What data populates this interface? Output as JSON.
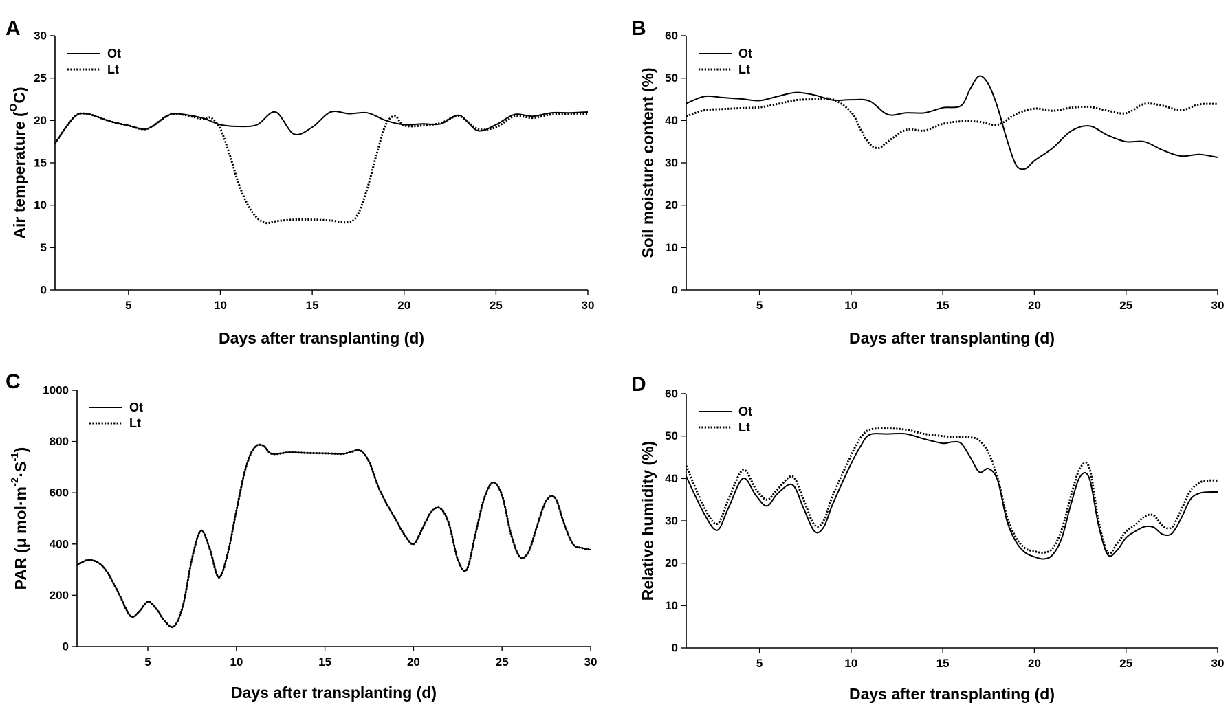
{
  "chart_data": [
    {
      "type": "line",
      "panel": "A",
      "title": "",
      "xlabel": "Days after transplanting (d)",
      "ylabel_main": "Air temperature (",
      "ylabel_sup": "O",
      "ylabel_end": "C)",
      "xlim": [
        1,
        30
      ],
      "ylim": [
        0,
        30
      ],
      "xticks": [
        "5",
        "10",
        "15",
        "20",
        "25",
        "30"
      ],
      "yticks": [
        "0",
        "5",
        "10",
        "15",
        "20",
        "25",
        "30"
      ],
      "legend": [
        "Ot",
        "Lt"
      ],
      "series": [
        {
          "name": "Ot",
          "style": "solid",
          "x": [
            1,
            2,
            2.7,
            4,
            5,
            6,
            7,
            7.6,
            9,
            10,
            11,
            12,
            13,
            14,
            15,
            16,
            17,
            18,
            19,
            20,
            21,
            22,
            23,
            24,
            25,
            26,
            27,
            28,
            29,
            30
          ],
          "y": [
            17.3,
            20.3,
            20.8,
            19.9,
            19.4,
            19.0,
            20.4,
            20.8,
            20.3,
            19.5,
            19.3,
            19.5,
            21.0,
            18.4,
            19.2,
            21.0,
            20.8,
            20.9,
            20.0,
            19.5,
            19.6,
            19.6,
            20.6,
            18.8,
            19.5,
            20.7,
            20.5,
            20.9,
            20.9,
            21.0
          ]
        },
        {
          "name": "Lt",
          "style": "dotted",
          "x": [
            1,
            2,
            2.7,
            4,
            5,
            6,
            7,
            7.6,
            9,
            9.5,
            10,
            10.5,
            11,
            11.5,
            12,
            12.5,
            13,
            14,
            15,
            16,
            17,
            17.5,
            18,
            18.5,
            19,
            19.5,
            20,
            21,
            22,
            23,
            24,
            25,
            26,
            27,
            28,
            29,
            30
          ],
          "y": [
            17.3,
            20.3,
            20.8,
            19.9,
            19.4,
            19.0,
            20.4,
            20.8,
            20.2,
            20.3,
            19.0,
            16.0,
            12.5,
            10.0,
            8.5,
            7.9,
            8.1,
            8.3,
            8.3,
            8.2,
            8.0,
            9.0,
            12.0,
            16.0,
            19.5,
            20.5,
            19.4,
            19.4,
            19.7,
            20.5,
            19.0,
            19.2,
            20.5,
            20.3,
            20.7,
            20.8,
            20.8
          ]
        }
      ]
    },
    {
      "type": "line",
      "panel": "B",
      "title": "",
      "xlabel": "Days after transplanting (d)",
      "ylabel_main": "Soil moisture content (%)",
      "ylabel_sup": "",
      "ylabel_end": "",
      "xlim": [
        1,
        30
      ],
      "ylim": [
        0,
        60
      ],
      "xticks": [
        "5",
        "10",
        "15",
        "20",
        "25",
        "30"
      ],
      "yticks": [
        "0",
        "10",
        "20",
        "30",
        "40",
        "50",
        "60"
      ],
      "legend": [
        "Ot",
        "Lt"
      ],
      "series": [
        {
          "name": "Ot",
          "style": "solid",
          "x": [
            1,
            2,
            3,
            4,
            5,
            6,
            7,
            8,
            9,
            10,
            11,
            12,
            13,
            14,
            15,
            16,
            16.5,
            17,
            17.5,
            18,
            18.5,
            19,
            19.5,
            20,
            21,
            22,
            23,
            24,
            25,
            26,
            27,
            28,
            29,
            30
          ],
          "y": [
            44.0,
            45.7,
            45.4,
            45.1,
            44.7,
            45.7,
            46.6,
            46.0,
            44.8,
            44.9,
            44.6,
            41.4,
            41.8,
            41.8,
            43.0,
            43.5,
            47.5,
            50.5,
            48.5,
            43.0,
            35.5,
            29.5,
            28.6,
            30.5,
            33.5,
            37.5,
            38.7,
            36.5,
            35.0,
            35.0,
            33.0,
            31.6,
            32.0,
            31.3
          ]
        },
        {
          "name": "Lt",
          "style": "dotted",
          "x": [
            1,
            2,
            3,
            4,
            5,
            6,
            7,
            8,
            9,
            10,
            10.5,
            11,
            11.5,
            12,
            13,
            14,
            15,
            16,
            17,
            18,
            19,
            20,
            21,
            22,
            23,
            24,
            25,
            26,
            27,
            28,
            29,
            30
          ],
          "y": [
            41.0,
            42.4,
            42.7,
            42.9,
            43.1,
            43.9,
            44.8,
            45.0,
            45.0,
            42.0,
            38.0,
            34.5,
            33.5,
            35.0,
            37.8,
            37.6,
            39.2,
            39.8,
            39.7,
            39.0,
            41.5,
            42.8,
            42.3,
            43.0,
            43.2,
            42.3,
            41.7,
            43.9,
            43.5,
            42.4,
            43.8,
            43.9
          ]
        }
      ]
    },
    {
      "type": "line",
      "panel": "C",
      "title": "",
      "xlabel": "Days after transplanting (d)",
      "ylabel_main": "PAR (μ mol·m",
      "ylabel_sup": "-2",
      "ylabel_mid": "·S",
      "ylabel_sup2": "-1",
      "ylabel_end": ")",
      "xlim": [
        1,
        30
      ],
      "ylim": [
        0,
        1000
      ],
      "xticks": [
        "5",
        "10",
        "15",
        "20",
        "25",
        "30"
      ],
      "yticks": [
        "0",
        "200",
        "400",
        "600",
        "800",
        "1000"
      ],
      "legend": [
        "Ot",
        "Lt"
      ],
      "series": [
        {
          "name": "Ot",
          "style": "solid",
          "x": [
            1,
            1.7,
            2.5,
            3.3,
            4,
            4.5,
            5,
            5.5,
            6,
            6.5,
            7,
            7.5,
            8,
            8.5,
            9,
            9.5,
            10,
            10.5,
            11,
            11.5,
            12,
            13,
            14,
            15,
            16,
            16.5,
            17,
            17.5,
            18,
            18.5,
            19,
            19.5,
            20,
            20.5,
            21,
            21.5,
            22,
            22.5,
            23,
            23.5,
            24,
            24.5,
            25,
            25.5,
            26,
            26.5,
            27,
            27.5,
            28,
            28.5,
            29,
            29.5,
            30
          ],
          "y": [
            318,
            338,
            310,
            215,
            120,
            135,
            175,
            145,
            95,
            80,
            165,
            345,
            452,
            380,
            270,
            360,
            530,
            690,
            775,
            785,
            752,
            758,
            755,
            754,
            752,
            760,
            765,
            720,
            625,
            555,
            495,
            435,
            400,
            460,
            525,
            540,
            480,
            340,
            300,
            440,
            580,
            640,
            590,
            440,
            350,
            370,
            475,
            570,
            580,
            480,
            400,
            385,
            378
          ]
        },
        {
          "name": "Lt",
          "style": "dotted",
          "x": [
            1,
            1.7,
            2.5,
            3.3,
            4,
            4.5,
            5,
            5.5,
            6,
            6.5,
            7,
            7.5,
            8,
            8.5,
            9,
            9.5,
            10,
            10.5,
            11,
            11.5,
            12,
            13,
            14,
            15,
            16,
            16.5,
            17,
            17.5,
            18,
            18.5,
            19,
            19.5,
            20,
            20.5,
            21,
            21.5,
            22,
            22.5,
            23,
            23.5,
            24,
            24.5,
            25,
            25.5,
            26,
            26.5,
            27,
            27.5,
            28,
            28.5,
            29,
            29.5,
            30
          ],
          "y": [
            318,
            338,
            310,
            215,
            120,
            135,
            175,
            145,
            95,
            80,
            165,
            345,
            452,
            380,
            270,
            360,
            530,
            690,
            775,
            785,
            752,
            758,
            755,
            754,
            752,
            760,
            765,
            720,
            625,
            555,
            495,
            435,
            400,
            460,
            525,
            540,
            480,
            340,
            300,
            440,
            580,
            640,
            590,
            440,
            350,
            370,
            475,
            570,
            580,
            480,
            400,
            385,
            378
          ]
        }
      ]
    },
    {
      "type": "line",
      "panel": "D",
      "title": "",
      "xlabel": "Days after transplanting (d)",
      "ylabel_main": "Relative humidity (%)",
      "ylabel_sup": "",
      "ylabel_end": "",
      "xlim": [
        1,
        30
      ],
      "ylim": [
        0,
        60
      ],
      "xticks": [
        "5",
        "10",
        "15",
        "20",
        "25",
        "30"
      ],
      "yticks": [
        "0",
        "10",
        "20",
        "30",
        "40",
        "50",
        "60"
      ],
      "legend": [
        "Ot",
        "Lt"
      ],
      "series": [
        {
          "name": "Ot",
          "style": "solid",
          "x": [
            1,
            2,
            2.7,
            3.3,
            4.1,
            4.8,
            5.4,
            6,
            6.8,
            7.4,
            8,
            8.5,
            9,
            10,
            10.5,
            11,
            12,
            13,
            14,
            15,
            15.5,
            16,
            16.5,
            17,
            17.5,
            18,
            18.5,
            19,
            19.5,
            20,
            20.5,
            21,
            21.5,
            22,
            22.5,
            23,
            23.5,
            24,
            24.5,
            25,
            25.5,
            26,
            26.5,
            27,
            27.5,
            28,
            28.5,
            29,
            29.5,
            30
          ],
          "y": [
            40.5,
            31.5,
            27.8,
            33.0,
            40.0,
            36.0,
            33.5,
            36.5,
            38.5,
            33.0,
            27.5,
            28.5,
            34.0,
            43.5,
            47.5,
            50.3,
            50.5,
            50.5,
            49.3,
            48.3,
            48.6,
            48.3,
            45.0,
            41.5,
            42.3,
            39.5,
            30.0,
            25.0,
            22.5,
            21.5,
            21.0,
            22.0,
            26.0,
            34.0,
            40.5,
            40.0,
            29.0,
            22.0,
            23.0,
            26.0,
            27.5,
            28.6,
            28.5,
            26.8,
            27.0,
            30.5,
            35.0,
            36.5,
            36.8,
            36.8
          ]
        },
        {
          "name": "Lt",
          "style": "dotted",
          "x": [
            1,
            2,
            2.7,
            3.3,
            4.1,
            4.8,
            5.4,
            6,
            6.8,
            7.4,
            8,
            8.5,
            9,
            10,
            10.5,
            11,
            12,
            13,
            14,
            15,
            15.5,
            16,
            16.5,
            17,
            17.5,
            18,
            18.5,
            19,
            19.5,
            20,
            20.5,
            21,
            21.5,
            22,
            22.5,
            23,
            23.5,
            24,
            24.5,
            25,
            25.5,
            26,
            26.5,
            27,
            27.5,
            28,
            28.5,
            29,
            29.5,
            30
          ],
          "y": [
            43.0,
            33.0,
            29.3,
            35.0,
            42.0,
            37.5,
            35.0,
            37.5,
            40.5,
            35.0,
            29.0,
            30.0,
            36.0,
            45.5,
            49.5,
            51.5,
            51.8,
            51.5,
            50.5,
            50.0,
            49.8,
            49.7,
            49.7,
            49.0,
            46.0,
            40.0,
            31.0,
            26.0,
            23.5,
            22.8,
            22.5,
            23.5,
            28.0,
            36.0,
            42.5,
            42.5,
            30.0,
            22.5,
            24.5,
            27.5,
            29.0,
            31.0,
            31.3,
            28.8,
            28.5,
            32.5,
            37.0,
            39.0,
            39.5,
            39.5
          ]
        }
      ]
    }
  ]
}
